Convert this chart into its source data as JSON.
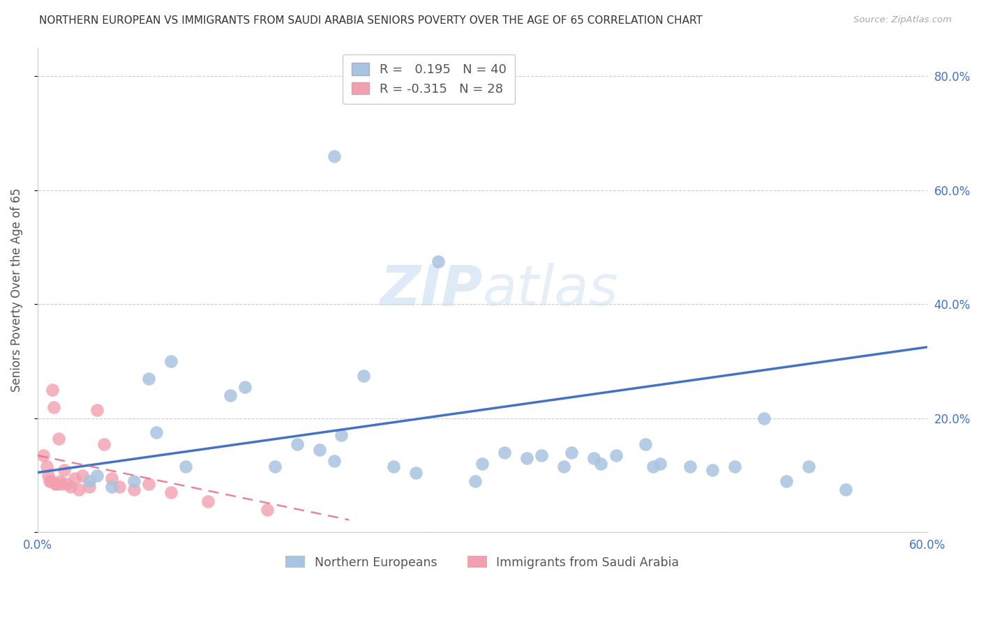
{
  "title": "NORTHERN EUROPEAN VS IMMIGRANTS FROM SAUDI ARABIA SENIORS POVERTY OVER THE AGE OF 65 CORRELATION CHART",
  "source": "Source: ZipAtlas.com",
  "ylabel": "Seniors Poverty Over the Age of 65",
  "xlim": [
    0.0,
    0.6
  ],
  "ylim": [
    0.0,
    0.85
  ],
  "blue_R": 0.195,
  "blue_N": 40,
  "pink_R": -0.315,
  "pink_N": 28,
  "blue_color": "#a8c4e0",
  "pink_color": "#f2a0b0",
  "blue_line_color": "#4472c4",
  "pink_line_color": "#e07090",
  "tick_color": "#4472c4",
  "watermark_color": "#ddeeff",
  "legend_label_blue": "Northern Europeans",
  "legend_label_pink": "Immigrants from Saudi Arabia",
  "blue_points_x": [
    0.035,
    0.04,
    0.05,
    0.065,
    0.075,
    0.08,
    0.09,
    0.1,
    0.13,
    0.14,
    0.16,
    0.175,
    0.19,
    0.2,
    0.205,
    0.22,
    0.24,
    0.255,
    0.295,
    0.3,
    0.315,
    0.33,
    0.34,
    0.355,
    0.36,
    0.375,
    0.38,
    0.39,
    0.41,
    0.415,
    0.42,
    0.44,
    0.455,
    0.47,
    0.49,
    0.505,
    0.52,
    0.545,
    0.2,
    0.27
  ],
  "blue_points_y": [
    0.09,
    0.1,
    0.08,
    0.09,
    0.27,
    0.175,
    0.3,
    0.115,
    0.24,
    0.255,
    0.115,
    0.155,
    0.145,
    0.125,
    0.17,
    0.275,
    0.115,
    0.105,
    0.09,
    0.12,
    0.14,
    0.13,
    0.135,
    0.115,
    0.14,
    0.13,
    0.12,
    0.135,
    0.155,
    0.115,
    0.12,
    0.115,
    0.11,
    0.115,
    0.2,
    0.09,
    0.115,
    0.075,
    0.66,
    0.475
  ],
  "pink_points_x": [
    0.004,
    0.006,
    0.007,
    0.008,
    0.009,
    0.01,
    0.011,
    0.012,
    0.013,
    0.014,
    0.015,
    0.016,
    0.018,
    0.02,
    0.022,
    0.025,
    0.028,
    0.03,
    0.035,
    0.04,
    0.045,
    0.05,
    0.055,
    0.065,
    0.075,
    0.09,
    0.115,
    0.155
  ],
  "pink_points_y": [
    0.135,
    0.115,
    0.1,
    0.09,
    0.09,
    0.25,
    0.22,
    0.085,
    0.085,
    0.165,
    0.09,
    0.085,
    0.11,
    0.085,
    0.08,
    0.095,
    0.075,
    0.1,
    0.08,
    0.215,
    0.155,
    0.095,
    0.08,
    0.075,
    0.085,
    0.07,
    0.055,
    0.04
  ],
  "blue_trend_x": [
    0.0,
    0.6
  ],
  "blue_trend_y": [
    0.105,
    0.325
  ],
  "pink_trend_x": [
    0.0,
    0.21
  ],
  "pink_trend_y": [
    0.135,
    0.022
  ],
  "ytick_pos": [
    0.0,
    0.2,
    0.4,
    0.6,
    0.8
  ],
  "ytick_labels": [
    "",
    "20.0%",
    "40.0%",
    "60.0%",
    "80.0%"
  ],
  "xtick_pos": [
    0.0,
    0.1,
    0.2,
    0.3,
    0.4,
    0.5,
    0.6
  ],
  "xtick_labels": [
    "0.0%",
    "",
    "",
    "",
    "",
    "",
    "60.0%"
  ]
}
